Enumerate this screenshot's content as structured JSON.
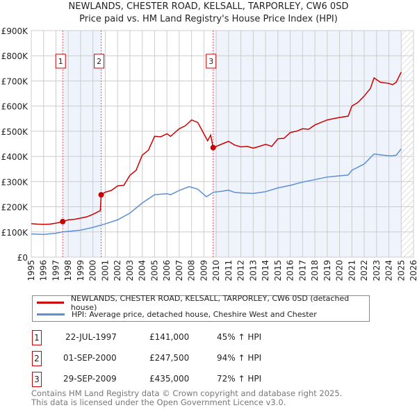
{
  "title": "NEWLANDS, CHESTER ROAD, KELSALL, TARPORLEY, CW6 0SD",
  "subtitle": "Price paid vs. HM Land Registry's House Price Index (HPI)",
  "chart_data": {
    "type": "line",
    "title": "NEWLANDS, CHESTER ROAD, KELSALL, TARPORLEY, CW6 0SD",
    "subtitle": "Price paid vs. HM Land Registry's House Price Index (HPI)",
    "xlim": [
      1995,
      2026
    ],
    "ylim": [
      0,
      900000
    ],
    "x_ticks": [
      "1995",
      "1996",
      "1997",
      "1998",
      "1999",
      "2000",
      "2001",
      "2002",
      "2003",
      "2004",
      "2005",
      "2006",
      "2007",
      "2008",
      "2009",
      "2010",
      "2011",
      "2012",
      "2013",
      "2014",
      "2015",
      "2016",
      "2017",
      "2018",
      "2019",
      "2020",
      "2021",
      "2022",
      "2023",
      "2024",
      "2025",
      "2026"
    ],
    "y_ticks": [
      {
        "v": 0,
        "label": "£0"
      },
      {
        "v": 100000,
        "label": "£100K"
      },
      {
        "v": 200000,
        "label": "£200K"
      },
      {
        "v": 300000,
        "label": "£300K"
      },
      {
        "v": 400000,
        "label": "£400K"
      },
      {
        "v": 500000,
        "label": "£500K"
      },
      {
        "v": 600000,
        "label": "£600K"
      },
      {
        "v": 700000,
        "label": "£700K"
      },
      {
        "v": 800000,
        "label": "£800K"
      },
      {
        "v": 900000,
        "label": "£900K"
      }
    ],
    "grid": true,
    "series": [
      {
        "name": "NEWLANDS, CHESTER ROAD, KELSALL, TARPORLEY, CW6 0SD (detached house)",
        "color": "#cc0000",
        "points": [
          [
            1995,
            133000
          ],
          [
            1995.5,
            131000
          ],
          [
            1996,
            130000
          ],
          [
            1996.5,
            131000
          ],
          [
            1997,
            135000
          ],
          [
            1997.55,
            141000
          ],
          [
            1998,
            148000
          ],
          [
            1998.5,
            150000
          ],
          [
            1999,
            155000
          ],
          [
            1999.5,
            160000
          ],
          [
            2000,
            170000
          ],
          [
            2000.6,
            185000
          ],
          [
            2000.67,
            247500
          ],
          [
            2001,
            258000
          ],
          [
            2001.5,
            265000
          ],
          [
            2002,
            283000
          ],
          [
            2002.5,
            285000
          ],
          [
            2003,
            325000
          ],
          [
            2003.5,
            345000
          ],
          [
            2004,
            405000
          ],
          [
            2004.5,
            425000
          ],
          [
            2005,
            480000
          ],
          [
            2005.5,
            478000
          ],
          [
            2006,
            490000
          ],
          [
            2006.3,
            480000
          ],
          [
            2007,
            510000
          ],
          [
            2007.5,
            522000
          ],
          [
            2008,
            545000
          ],
          [
            2008.5,
            535000
          ],
          [
            2009,
            490000
          ],
          [
            2009.3,
            462000
          ],
          [
            2009.55,
            485000
          ],
          [
            2009.75,
            435000
          ],
          [
            2010.5,
            450000
          ],
          [
            2011,
            460000
          ],
          [
            2011.5,
            445000
          ],
          [
            2012,
            438000
          ],
          [
            2012.5,
            440000
          ],
          [
            2013,
            433000
          ],
          [
            2013.5,
            440000
          ],
          [
            2014,
            448000
          ],
          [
            2014.5,
            440000
          ],
          [
            2015,
            470000
          ],
          [
            2015.5,
            472000
          ],
          [
            2016,
            495000
          ],
          [
            2016.5,
            500000
          ],
          [
            2017,
            510000
          ],
          [
            2017.5,
            508000
          ],
          [
            2018,
            525000
          ],
          [
            2018.5,
            535000
          ],
          [
            2019,
            545000
          ],
          [
            2019.5,
            550000
          ],
          [
            2020,
            555000
          ],
          [
            2020.7,
            560000
          ],
          [
            2021,
            600000
          ],
          [
            2021.5,
            615000
          ],
          [
            2022,
            640000
          ],
          [
            2022.5,
            670000
          ],
          [
            2022.8,
            712000
          ],
          [
            2023.3,
            695000
          ],
          [
            2024,
            690000
          ],
          [
            2024.3,
            685000
          ],
          [
            2024.6,
            695000
          ],
          [
            2025,
            735000
          ]
        ]
      },
      {
        "name": "HPI: Average price, detached house, Cheshire West and Chester",
        "color": "#5b8fd4",
        "points": [
          [
            1995,
            92000
          ],
          [
            1996,
            90000
          ],
          [
            1997,
            95000
          ],
          [
            1997.55,
            100000
          ],
          [
            1998,
            102000
          ],
          [
            1999,
            107000
          ],
          [
            2000,
            118000
          ],
          [
            2001,
            132000
          ],
          [
            2002,
            148000
          ],
          [
            2003,
            175000
          ],
          [
            2004,
            215000
          ],
          [
            2005,
            248000
          ],
          [
            2006,
            252000
          ],
          [
            2006.3,
            248000
          ],
          [
            2007,
            265000
          ],
          [
            2007.8,
            280000
          ],
          [
            2008.5,
            270000
          ],
          [
            2009.2,
            240000
          ],
          [
            2009.8,
            258000
          ],
          [
            2010.5,
            262000
          ],
          [
            2011,
            266000
          ],
          [
            2011.5,
            257000
          ],
          [
            2012,
            255000
          ],
          [
            2013,
            253000
          ],
          [
            2014,
            260000
          ],
          [
            2015,
            275000
          ],
          [
            2016,
            285000
          ],
          [
            2017,
            298000
          ],
          [
            2018,
            308000
          ],
          [
            2019,
            318000
          ],
          [
            2020,
            323000
          ],
          [
            2020.7,
            326000
          ],
          [
            2021,
            345000
          ],
          [
            2022,
            370000
          ],
          [
            2022.8,
            410000
          ],
          [
            2023.5,
            405000
          ],
          [
            2024.2,
            402000
          ],
          [
            2024.6,
            405000
          ],
          [
            2025,
            430000
          ]
        ]
      }
    ],
    "sales": [
      {
        "id": "1",
        "x": 1997.55,
        "price": 141000
      },
      {
        "id": "2",
        "x": 2000.67,
        "price": 247500
      },
      {
        "id": "3",
        "x": 2009.75,
        "price": 435000
      }
    ],
    "shaded_ranges": [
      [
        1997.55,
        2000.67
      ],
      [
        2009.75,
        2025.0
      ]
    ],
    "forecast_hatch_from": 2025.0
  },
  "legend": {
    "property": "NEWLANDS, CHESTER ROAD, KELSALL, TARPORLEY, CW6 0SD (detached house)",
    "hpi": "HPI: Average price, detached house, Cheshire West and Chester"
  },
  "transactions": [
    {
      "num": "1",
      "date": "22-JUL-1997",
      "price": "£141,000",
      "hpi": "45% ↑ HPI"
    },
    {
      "num": "2",
      "date": "01-SEP-2000",
      "price": "£247,500",
      "hpi": "94% ↑ HPI"
    },
    {
      "num": "3",
      "date": "29-SEP-2009",
      "price": "£435,000",
      "hpi": "72% ↑ HPI"
    }
  ],
  "footer": {
    "line1": "Contains HM Land Registry data © Crown copyright and database right 2025.",
    "line2": "This data is licensed under the Open Government Licence v3.0."
  }
}
